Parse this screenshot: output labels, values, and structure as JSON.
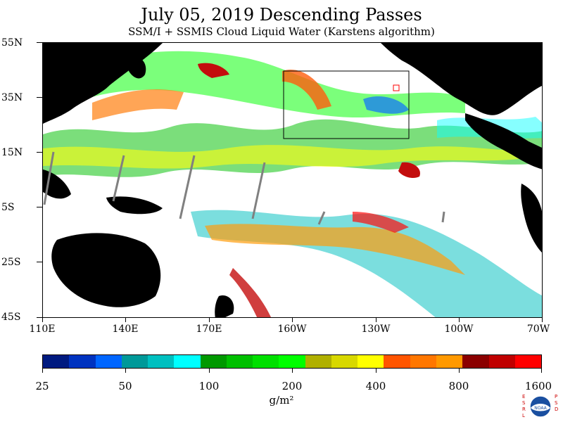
{
  "title": "July 05, 2019  Descending Passes",
  "subtitle": "SSM/I + SSMIS Cloud Liquid Water (Karstens algorithm)",
  "lat_labels": [
    "55N",
    "35N",
    "15N",
    "5S",
    "25S",
    "45S"
  ],
  "lon_labels": [
    "110E",
    "140E",
    "170E",
    "160W",
    "130W",
    "100W",
    "70W"
  ],
  "colorbar": {
    "colors": [
      "#001a80",
      "#0033c0",
      "#0066ff",
      "#009999",
      "#00c0c0",
      "#00ffff",
      "#009900",
      "#00c000",
      "#00e000",
      "#00ff00",
      "#b0b000",
      "#d8d800",
      "#ffff00",
      "#ff5500",
      "#ff7700",
      "#ff9900",
      "#8b0000",
      "#c00000",
      "#ff0000"
    ],
    "tick_labels": [
      "25",
      "50",
      "100",
      "200",
      "400",
      "800",
      "1600"
    ],
    "units": "g/m²"
  },
  "colors": {
    "land": "#000000",
    "background": "#ffffff",
    "swath_gap": "#808080"
  },
  "logo": {
    "left_text": "ESRL",
    "right_text": "PSD",
    "center_text": "NOAA"
  }
}
